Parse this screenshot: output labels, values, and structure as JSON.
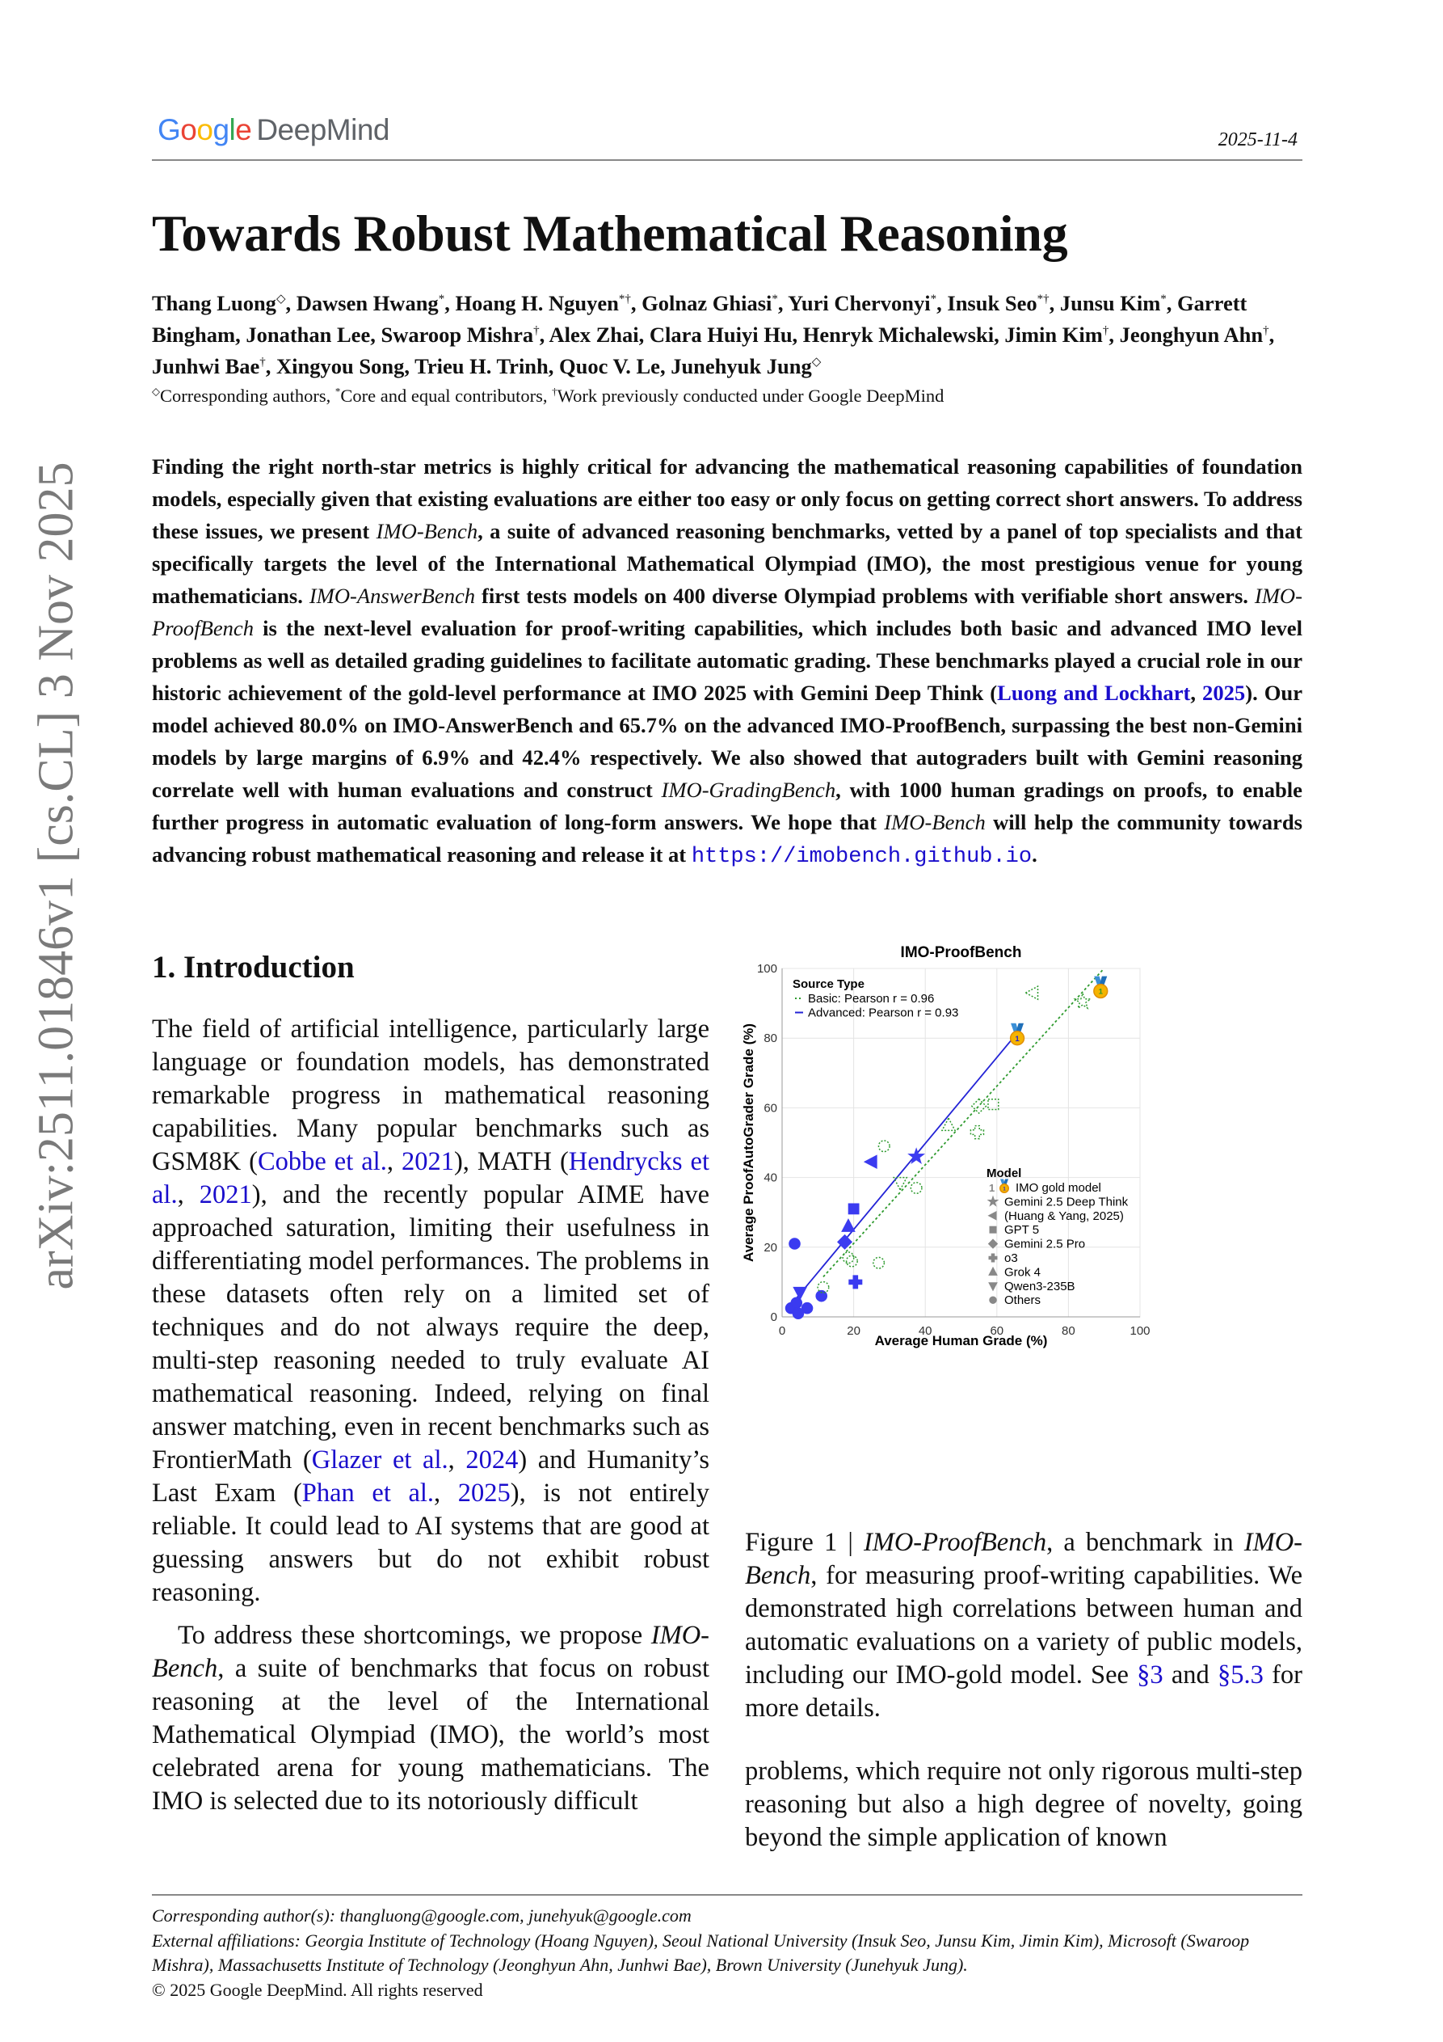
{
  "header": {
    "logo": {
      "google": [
        "G",
        "o",
        "o",
        "g",
        "l",
        "e"
      ],
      "google_colors": [
        "#4285F4",
        "#EA4335",
        "#FBBC05",
        "#4285F4",
        "#34A853",
        "#EA4335"
      ],
      "deepmind": "DeepMind"
    },
    "date": "2025-11-4"
  },
  "title": "Towards Robust Mathematical Reasoning",
  "authors": [
    {
      "t": "Thang Luong"
    },
    {
      "sup": "◇"
    },
    {
      "t": ", Dawsen Hwang"
    },
    {
      "sup": "*"
    },
    {
      "t": ", Hoang H. Nguyen"
    },
    {
      "sup": "*†"
    },
    {
      "t": ", Golnaz Ghiasi"
    },
    {
      "sup": "*"
    },
    {
      "t": ", Yuri Chervonyi"
    },
    {
      "sup": "*"
    },
    {
      "t": ", Insuk Seo"
    },
    {
      "sup": "*†"
    },
    {
      "t": ", Junsu Kim"
    },
    {
      "sup": "*"
    },
    {
      "t": ", Garrett Bingham, Jonathan Lee, Swaroop Mishra"
    },
    {
      "sup": "†"
    },
    {
      "t": ", Alex Zhai, Clara Huiyi Hu, Henryk Michalewski, Jimin Kim"
    },
    {
      "sup": "†"
    },
    {
      "t": ", Jeonghyun Ahn"
    },
    {
      "sup": "†"
    },
    {
      "t": ", Junhwi Bae"
    },
    {
      "sup": "†"
    },
    {
      "t": ", Xingyou Song, Trieu H. Trinh, Quoc V. Le, Junehyuk Jung"
    },
    {
      "sup": "◇"
    }
  ],
  "footnote": [
    {
      "sup": "◇"
    },
    {
      "t": "Corresponding authors, "
    },
    {
      "sup": "*"
    },
    {
      "t": "Core and equal contributors, "
    },
    {
      "sup": "†"
    },
    {
      "t": "Work previously conducted under Google DeepMind"
    }
  ],
  "abstract": [
    {
      "t": "Finding the right north-star metrics is highly critical for advancing the mathematical reasoning capabilities of foundation models, especially given that existing evaluations are either too easy or only focus on getting correct short answers. To address these issues, we present "
    },
    {
      "em": "IMO-Bench"
    },
    {
      "t": ", a suite of advanced reasoning benchmarks, vetted by a panel of top specialists and that specifically targets the level of the International Mathematical Olympiad (IMO), the most prestigious venue for young mathematicians. "
    },
    {
      "em": "IMO-AnswerBench"
    },
    {
      "t": " first tests models on 400 diverse Olympiad problems with verifiable short answers. "
    },
    {
      "em": "IMO-ProofBench"
    },
    {
      "t": " is the next-level evaluation for proof-writing capabilities, which includes both basic and advanced IMO level problems as well as detailed grading guidelines to facilitate automatic grading. These benchmarks played a crucial role in our historic achievement of the gold-level performance at IMO 2025 with Gemini Deep Think ("
    },
    {
      "link": "Luong and Lockhart"
    },
    {
      "t": ", "
    },
    {
      "link": "2025"
    },
    {
      "t": "). Our model achieved 80.0% on IMO-AnswerBench and 65.7% on the advanced IMO-ProofBench, surpassing the best non-Gemini models by large margins of 6.9% and 42.4% respectively. We also showed that autograders built with Gemini reasoning correlate well with human evaluations and construct "
    },
    {
      "em": "IMO-GradingBench"
    },
    {
      "t": ", with 1000 human gradings on proofs, to enable further progress in automatic evaluation of long-form answers. We hope that "
    },
    {
      "em": "IMO-Bench"
    },
    {
      "t": " will help the community towards advancing robust mathematical reasoning and release it at "
    },
    {
      "code": "https://imobench.github.io"
    },
    {
      "t": "."
    }
  ],
  "arxiv_id": "arXiv:2511.01846v1  [cs.CL]  3 Nov 2025",
  "introduction": {
    "heading": "1.  Introduction",
    "para1": [
      {
        "t": "The field of artificial intelligence, particularly large language or foundation models, has demonstrated remarkable progress in mathematical reasoning capabilities. Many popular benchmarks such as GSM8K ("
      },
      {
        "link": "Cobbe et al."
      },
      {
        "t": ", "
      },
      {
        "link": "2021"
      },
      {
        "t": "), MATH ("
      },
      {
        "link": "Hendrycks et al."
      },
      {
        "t": ", "
      },
      {
        "link": "2021"
      },
      {
        "t": "), and the recently popular AIME have approached saturation, limiting their usefulness in differentiating model performances. The problems in these datasets often rely on a limited set of techniques and do not always require the deep, multi-step reasoning needed to truly evaluate AI mathematical reasoning. Indeed, relying on final answer matching, even in recent benchmarks such as FrontierMath ("
      },
      {
        "link": "Glazer et al."
      },
      {
        "t": ", "
      },
      {
        "link": "2024"
      },
      {
        "t": ") and Humanity’s Last Exam ("
      },
      {
        "link": "Phan et al."
      },
      {
        "t": ", "
      },
      {
        "link": "2025"
      },
      {
        "t": "), is not entirely reliable. It could lead to AI systems that are good at guessing answers but do not exhibit robust reasoning."
      }
    ],
    "para2": [
      {
        "t": "To address these shortcomings, we propose "
      },
      {
        "em": "IMO-Bench"
      },
      {
        "t": ", a suite of benchmarks that focus on robust reasoning at the level of the International Mathematical Olympiad (IMO), the world’s most celebrated arena for young mathematicians. The IMO is selected due to its notoriously difficult"
      }
    ],
    "para3": [
      {
        "t": "problems, which require not only rigorous multi-step reasoning but also a high degree of novelty, going beyond the simple application of known"
      }
    ]
  },
  "figure_caption": [
    {
      "t": "Figure 1 | "
    },
    {
      "em": "IMO-ProofBench"
    },
    {
      "t": ", a benchmark in "
    },
    {
      "em": "IMO-Bench"
    },
    {
      "t": ", for measuring proof-writing capabilities. We demonstrated high correlations between human and automatic evaluations on a variety of public models, including our IMO-gold model. See "
    },
    {
      "link": "§3"
    },
    {
      "t": " and "
    },
    {
      "link": "§5.3"
    },
    {
      "t": " for more details."
    }
  ],
  "chart_data": {
    "type": "scatter",
    "title": "IMO-ProofBench",
    "xlabel": "Average Human Grade (%)",
    "ylabel": "Average ProofAutoGrader Grade (%)",
    "xlim": [
      0,
      100
    ],
    "ylim": [
      0,
      100
    ],
    "xticks": [
      0,
      20,
      40,
      60,
      80,
      100
    ],
    "yticks": [
      0,
      20,
      40,
      60,
      80,
      100
    ],
    "grid": true,
    "legend_source": {
      "title": "Source Type",
      "placement": "top-left",
      "entries": [
        {
          "name": "Basic: Pearson r = 0.96",
          "color": "#2e9a2e",
          "style": "dotted"
        },
        {
          "name": "Advanced: Pearson r = 0.93",
          "color": "#2323d6",
          "style": "solid"
        }
      ]
    },
    "legend_model": {
      "title": "Model",
      "placement": "bottom-right",
      "entries": [
        {
          "name": "IMO gold model",
          "marker": "medal",
          "prefix": "1"
        },
        {
          "name": "Gemini 2.5 Deep Think",
          "marker": "star"
        },
        {
          "name": "(Huang & Yang, 2025)",
          "marker": "tri-left"
        },
        {
          "name": "GPT 5",
          "marker": "square"
        },
        {
          "name": "Gemini 2.5 Pro",
          "marker": "diamond"
        },
        {
          "name": "o3",
          "marker": "plus"
        },
        {
          "name": "Grok 4",
          "marker": "tri-up"
        },
        {
          "name": "Qwen3-235B",
          "marker": "tri-down"
        },
        {
          "name": "Others",
          "marker": "circle"
        }
      ]
    },
    "series": [
      {
        "name": "Advanced: Pearson r = 0.93",
        "color": "#3b3bf0",
        "fill": "filled",
        "fit_line": [
          [
            2.5,
            3.5
          ],
          [
            64.5,
            80
          ]
        ],
        "points": [
          {
            "model": "IMO gold model",
            "marker": "medal",
            "x": 65.7,
            "y": 80
          },
          {
            "model": "Gemini 2.5 Deep Think",
            "marker": "star",
            "x": 37.5,
            "y": 46
          },
          {
            "model": "(Huang & Yang, 2025)",
            "marker": "tri-left",
            "x": 25,
            "y": 44.5
          },
          {
            "model": "GPT 5",
            "marker": "square",
            "x": 20,
            "y": 31
          },
          {
            "model": "Gemini 2.5 Pro",
            "marker": "diamond",
            "x": 17.5,
            "y": 21.5
          },
          {
            "model": "o3",
            "marker": "plus",
            "x": 20.5,
            "y": 10
          },
          {
            "model": "Grok 4",
            "marker": "tri-up",
            "x": 18.5,
            "y": 26
          },
          {
            "model": "Qwen3-235B",
            "marker": "tri-down",
            "x": 5,
            "y": 7
          },
          {
            "model": "Others",
            "marker": "circle",
            "x": 3.5,
            "y": 21
          },
          {
            "model": "Others",
            "marker": "circle",
            "x": 2.5,
            "y": 2.5
          },
          {
            "model": "Others",
            "marker": "circle",
            "x": 4,
            "y": 4
          },
          {
            "model": "Others",
            "marker": "circle",
            "x": 4.5,
            "y": 1
          },
          {
            "model": "Others",
            "marker": "circle",
            "x": 7,
            "y": 2.5
          },
          {
            "model": "Others",
            "marker": "circle",
            "x": 11,
            "y": 6
          }
        ]
      },
      {
        "name": "Basic: Pearson r = 0.96",
        "color": "#2e9a2e",
        "fill": "hollow-dotted",
        "fit_line": [
          [
            11.5,
            11.5
          ],
          [
            89.5,
            99.5
          ]
        ],
        "points": [
          {
            "model": "IMO gold model",
            "marker": "medal",
            "x": 89,
            "y": 93.5
          },
          {
            "model": "Gemini 2.5 Deep Think",
            "marker": "star",
            "x": 84,
            "y": 90.5
          },
          {
            "model": "(Huang & Yang, 2025)",
            "marker": "tri-left",
            "x": 70,
            "y": 93
          },
          {
            "model": "GPT 5",
            "marker": "square",
            "x": 59,
            "y": 61
          },
          {
            "model": "Gemini 2.5 Pro",
            "marker": "diamond",
            "x": 55,
            "y": 60.5
          },
          {
            "model": "o3",
            "marker": "plus",
            "x": 54.5,
            "y": 53
          },
          {
            "model": "Grok 4",
            "marker": "tri-up",
            "x": 46.5,
            "y": 55
          },
          {
            "model": "Qwen3-235B",
            "marker": "tri-down",
            "x": 33,
            "y": 38.5
          },
          {
            "model": "Others",
            "marker": "circle",
            "x": 28.5,
            "y": 49
          },
          {
            "model": "Others",
            "marker": "circle",
            "x": 37.5,
            "y": 37
          },
          {
            "model": "Others",
            "marker": "circle",
            "x": 27,
            "y": 15.5
          },
          {
            "model": "Others",
            "marker": "circle",
            "x": 19.5,
            "y": 16
          },
          {
            "model": "Others",
            "marker": "circle",
            "x": 18.5,
            "y": 17
          },
          {
            "model": "Others",
            "marker": "circle",
            "x": 11.5,
            "y": 8.5
          }
        ]
      }
    ]
  },
  "footer": {
    "corresponding": "Corresponding author(s): thangluong@google.com, junehyuk@google.com",
    "affiliations": "External affiliations: Georgia Institute of Technology (Hoang Nguyen), Seoul National University (Insuk Seo, Junsu Kim, Jimin Kim), Microsoft (Swaroop Mishra), Massachusetts Institute of Technology (Jeonghyun Ahn, Junhwi Bae), Brown University (Junehyuk Jung).",
    "copyright": "© 2025 Google DeepMind. All rights reserved"
  }
}
